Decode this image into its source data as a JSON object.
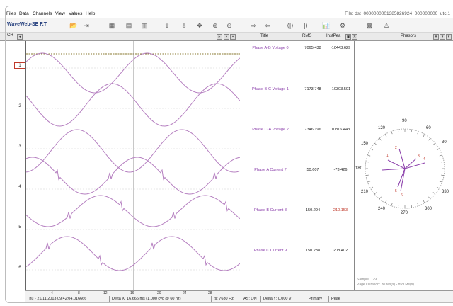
{
  "menu": [
    "Files",
    "Data",
    "Channels",
    "View",
    "Values",
    "Help"
  ],
  "file_title": "File: dst_0000000001385826924_000000000_utc.1",
  "app_name": "WaveWeb-SE F.T",
  "channel_bar": {
    "label": "CH",
    "title_header": "Title",
    "rms_header": "RMS",
    "instpeak_header": "InstPea",
    "phasors_header": "Phasors"
  },
  "channel_numbers": [
    "1",
    "2",
    "3",
    "4",
    "5",
    "6"
  ],
  "channels": [
    {
      "title": "Phase A-B Voltage 0",
      "rms": "7065.438",
      "inst_peak": "-10443.629"
    },
    {
      "title": "Phase B-C Voltage 1",
      "rms": "7173.748",
      "inst_peak": "-10303.501"
    },
    {
      "title": "Phase C-A Voltage 2",
      "rms": "7346.196",
      "inst_peak": "10816.443"
    },
    {
      "title": "Phase A Current 7",
      "rms": "50.607",
      "inst_peak": "-73.426"
    },
    {
      "title": "Phase B Current 8",
      "rms": "150.294",
      "inst_peak": "210.153"
    },
    {
      "title": "Phase C Current 9",
      "rms": "150.238",
      "inst_peak": "208.402"
    }
  ],
  "phasor_degrees": [
    "90",
    "60",
    "30",
    "330",
    "300",
    "270",
    "240",
    "210",
    "180",
    "150",
    "120"
  ],
  "phasor_numbers": [
    "1",
    "2",
    "3",
    "4",
    "5",
    "6"
  ],
  "sample_info": {
    "sample": "Sample: 129",
    "duration": "Page Duration: 30 Ms(s) - 859 Ms(s)"
  },
  "x_ticks": [
    "4",
    "8",
    "12",
    "16",
    "20",
    "24",
    "28"
  ],
  "status": {
    "datetime": "Thu - 21/11/2013 09:42:04.016666",
    "delta_x": "Delta X: 16.666 ms (1.000 cyc @ 60 hz)",
    "fs": "fs: 7680 Hz",
    "as": "AS: ON",
    "delta_y": "Delta Y: 0.000 V",
    "primary": "Primary",
    "peak": "Peak"
  },
  "colors": {
    "trace": "#b57fc0",
    "label": "#8e44ad",
    "cursor_line": "#8a7a30"
  }
}
